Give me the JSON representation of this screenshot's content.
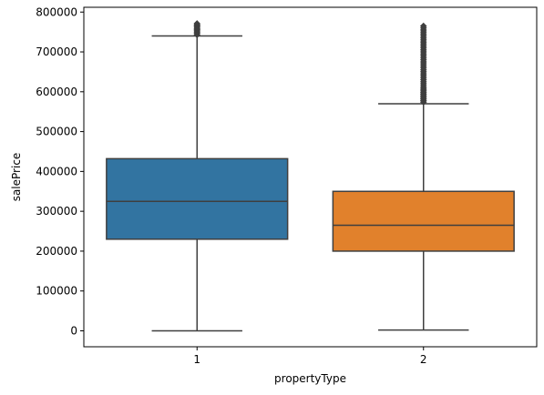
{
  "chart_data": {
    "type": "box",
    "xlabel": "propertyType",
    "ylabel": "salePrice",
    "ylim": [
      -40000,
      812000
    ],
    "y_ticks": [
      0,
      100000,
      200000,
      300000,
      400000,
      500000,
      600000,
      700000,
      800000
    ],
    "y_tick_labels": [
      "0",
      "100000",
      "200000",
      "300000",
      "400000",
      "500000",
      "600000",
      "700000",
      "800000"
    ],
    "categories": [
      "1",
      "2"
    ],
    "boxes": [
      {
        "category": "1",
        "color": "#3274a1",
        "whisker_low": 0,
        "q1": 230000,
        "median": 325000,
        "q3": 432000,
        "whisker_high": 740000,
        "outliers": [
          743000,
          747000,
          750000,
          753000,
          756000,
          759000,
          762000,
          765000,
          768000,
          771000
        ]
      },
      {
        "category": "2",
        "color": "#e1812c",
        "whisker_low": 2000,
        "q1": 200000,
        "median": 265000,
        "q3": 350000,
        "whisker_high": 570000,
        "outliers": [
          574000,
          578000,
          582000,
          586000,
          590000,
          594000,
          598000,
          602000,
          606000,
          610000,
          615000,
          620000,
          625000,
          630000,
          635000,
          640000,
          645000,
          650000,
          655000,
          660000,
          665000,
          670000,
          675000,
          680000,
          685000,
          690000,
          695000,
          700000,
          705000,
          710000,
          715000,
          720000,
          725000,
          730000,
          735000,
          740000,
          745000,
          750000,
          755000,
          760000,
          765000
        ]
      }
    ],
    "grid": false,
    "legend": "none"
  }
}
